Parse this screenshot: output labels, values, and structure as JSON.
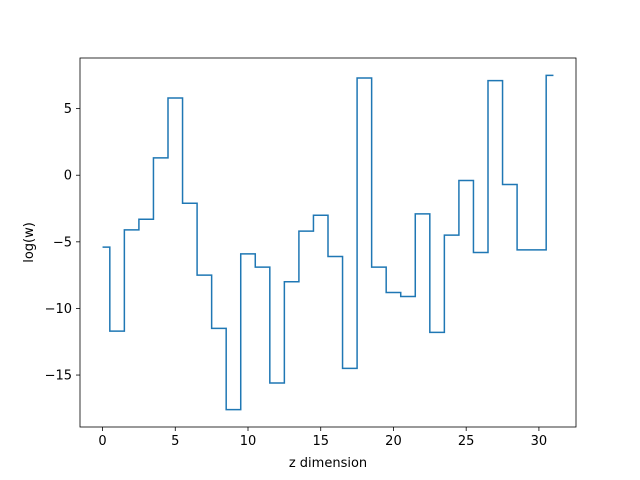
{
  "chart_data": {
    "type": "line",
    "drawstyle": "steps-mid",
    "title": "",
    "xlabel": "z dimension",
    "ylabel": "log(w)",
    "xlim": [
      -1.55,
      32.55
    ],
    "ylim": [
      -18.9,
      8.8
    ],
    "xticks": [
      0,
      5,
      10,
      15,
      20,
      25,
      30
    ],
    "yticks": [
      5,
      0,
      -5,
      -10,
      -15
    ],
    "ytick_labels": [
      "5",
      "0",
      "−5",
      "−10",
      "−15"
    ],
    "grid": false,
    "legend": "none",
    "colors": {
      "series": "#1f77b4",
      "axes": "#000000"
    },
    "series": [
      {
        "x": [
          0,
          1,
          2,
          3,
          4,
          5,
          6,
          7,
          8,
          9,
          10,
          11,
          12,
          13,
          14,
          15,
          16,
          17,
          18,
          19,
          20,
          21,
          22,
          23,
          24,
          25,
          26,
          27,
          28,
          29,
          30,
          31
        ],
        "values": [
          -5.4,
          -11.7,
          -4.1,
          -3.3,
          1.3,
          5.8,
          -2.1,
          -7.5,
          -11.5,
          -17.6,
          -5.9,
          -6.9,
          -15.6,
          -8.0,
          -4.2,
          -3.0,
          -6.1,
          -14.5,
          7.3,
          -6.9,
          -8.8,
          -9.1,
          -2.9,
          -11.8,
          -4.5,
          -0.4,
          -5.8,
          7.1,
          -0.7,
          -5.6,
          -5.6,
          7.5
        ]
      }
    ]
  }
}
